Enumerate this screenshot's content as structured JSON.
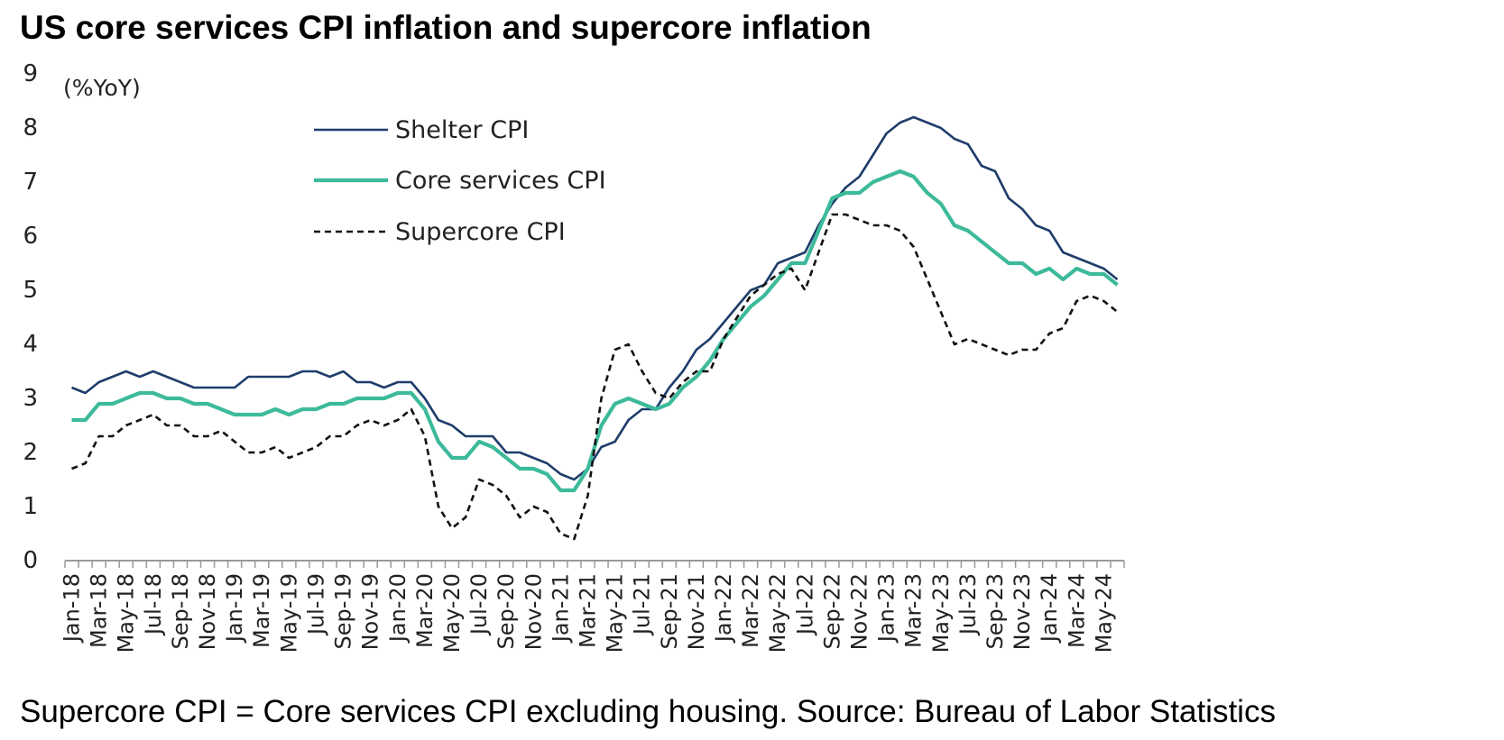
{
  "title": "US core services CPI inflation and supercore inflation",
  "footnote": "Supercore CPI = Core services CPI excluding housing. Source: Bureau of Labor Statistics",
  "chart_data": {
    "type": "line",
    "title": "US core services CPI inflation and supercore inflation",
    "ylabel": "(%YoY)",
    "xlabel": "",
    "ylim": [
      0,
      9
    ],
    "yticks": [
      0,
      1,
      2,
      3,
      4,
      5,
      6,
      7,
      8,
      9
    ],
    "grid": false,
    "legend_position": "top-left",
    "x": [
      "Jan-18",
      "Feb-18",
      "Mar-18",
      "Apr-18",
      "May-18",
      "Jun-18",
      "Jul-18",
      "Aug-18",
      "Sep-18",
      "Oct-18",
      "Nov-18",
      "Dec-18",
      "Jan-19",
      "Feb-19",
      "Mar-19",
      "Apr-19",
      "May-19",
      "Jun-19",
      "Jul-19",
      "Aug-19",
      "Sep-19",
      "Oct-19",
      "Nov-19",
      "Dec-19",
      "Jan-20",
      "Feb-20",
      "Mar-20",
      "Apr-20",
      "May-20",
      "Jun-20",
      "Jul-20",
      "Aug-20",
      "Sep-20",
      "Oct-20",
      "Nov-20",
      "Dec-20",
      "Jan-21",
      "Feb-21",
      "Mar-21",
      "Apr-21",
      "May-21",
      "Jun-21",
      "Jul-21",
      "Aug-21",
      "Sep-21",
      "Oct-21",
      "Nov-21",
      "Dec-21",
      "Jan-22",
      "Feb-22",
      "Mar-22",
      "Apr-22",
      "May-22",
      "Jun-22",
      "Jul-22",
      "Aug-22",
      "Sep-22",
      "Oct-22",
      "Nov-22",
      "Dec-22",
      "Jan-23",
      "Feb-23",
      "Mar-23",
      "Apr-23",
      "May-23",
      "Jun-23",
      "Jul-23",
      "Aug-23",
      "Sep-23",
      "Oct-23",
      "Nov-23",
      "Dec-23",
      "Jan-24",
      "Feb-24",
      "Mar-24",
      "Apr-24",
      "May-24",
      "Jun-24"
    ],
    "x_tick_labels": [
      "Jan-18",
      "Mar-18",
      "May-18",
      "Jul-18",
      "Sep-18",
      "Nov-18",
      "Jan-19",
      "Mar-19",
      "May-19",
      "Jul-19",
      "Sep-19",
      "Nov-19",
      "Jan-20",
      "Mar-20",
      "May-20",
      "Jul-20",
      "Sep-20",
      "Nov-20",
      "Jan-21",
      "Mar-21",
      "May-21",
      "Jul-21",
      "Sep-21",
      "Nov-21",
      "Jan-22",
      "Mar-22",
      "May-22",
      "Jul-22",
      "Sep-22",
      "Nov-22",
      "Jan-23",
      "Mar-23",
      "May-23",
      "Jul-23",
      "Sep-23",
      "Nov-23",
      "Jan-24",
      "Mar-24",
      "May-24"
    ],
    "series": [
      {
        "name": "Shelter CPI",
        "color": "#1f3d6b",
        "style": "solid",
        "values": [
          3.2,
          3.1,
          3.3,
          3.4,
          3.5,
          3.4,
          3.5,
          3.4,
          3.3,
          3.2,
          3.2,
          3.2,
          3.2,
          3.4,
          3.4,
          3.4,
          3.4,
          3.5,
          3.5,
          3.4,
          3.5,
          3.3,
          3.3,
          3.2,
          3.3,
          3.3,
          3.0,
          2.6,
          2.5,
          2.3,
          2.3,
          2.3,
          2.0,
          2.0,
          1.9,
          1.8,
          1.6,
          1.5,
          1.7,
          2.1,
          2.2,
          2.6,
          2.8,
          2.8,
          3.2,
          3.5,
          3.9,
          4.1,
          4.4,
          4.7,
          5.0,
          5.1,
          5.5,
          5.6,
          5.7,
          6.2,
          6.6,
          6.9,
          7.1,
          7.5,
          7.9,
          8.1,
          8.2,
          8.1,
          8.0,
          7.8,
          7.7,
          7.3,
          7.2,
          6.7,
          6.5,
          6.2,
          6.1,
          5.7,
          5.6,
          5.5,
          5.4,
          5.2
        ]
      },
      {
        "name": "Core services CPI",
        "color": "#3dba9b",
        "style": "solid",
        "values": [
          2.6,
          2.6,
          2.9,
          2.9,
          3.0,
          3.1,
          3.1,
          3.0,
          3.0,
          2.9,
          2.9,
          2.8,
          2.7,
          2.7,
          2.7,
          2.8,
          2.7,
          2.8,
          2.8,
          2.9,
          2.9,
          3.0,
          3.0,
          3.0,
          3.1,
          3.1,
          2.8,
          2.2,
          1.9,
          1.9,
          2.2,
          2.1,
          1.9,
          1.7,
          1.7,
          1.6,
          1.3,
          1.3,
          1.7,
          2.5,
          2.9,
          3.0,
          2.9,
          2.8,
          2.9,
          3.2,
          3.4,
          3.7,
          4.1,
          4.4,
          4.7,
          4.9,
          5.2,
          5.5,
          5.5,
          6.1,
          6.7,
          6.8,
          6.8,
          7.0,
          7.1,
          7.2,
          7.1,
          6.8,
          6.6,
          6.2,
          6.1,
          5.9,
          5.7,
          5.5,
          5.5,
          5.3,
          5.4,
          5.2,
          5.4,
          5.3,
          5.3,
          5.1
        ]
      },
      {
        "name": "Supercore CPI",
        "color": "#111111",
        "style": "dashed",
        "values": [
          1.7,
          1.8,
          2.3,
          2.3,
          2.5,
          2.6,
          2.7,
          2.5,
          2.5,
          2.3,
          2.3,
          2.4,
          2.2,
          2.0,
          2.0,
          2.1,
          1.9,
          2.0,
          2.1,
          2.3,
          2.3,
          2.5,
          2.6,
          2.5,
          2.6,
          2.8,
          2.3,
          1.0,
          0.6,
          0.8,
          1.5,
          1.4,
          1.2,
          0.8,
          1.0,
          0.9,
          0.5,
          0.4,
          1.2,
          3.0,
          3.9,
          4.0,
          3.5,
          3.1,
          3.0,
          3.3,
          3.5,
          3.5,
          4.1,
          4.5,
          4.9,
          5.1,
          5.3,
          5.4,
          5.0,
          5.7,
          6.4,
          6.4,
          6.3,
          6.2,
          6.2,
          6.1,
          5.8,
          5.2,
          4.6,
          4.0,
          4.1,
          4.0,
          3.9,
          3.8,
          3.9,
          3.9,
          4.2,
          4.3,
          4.8,
          4.9,
          4.8,
          4.6
        ]
      }
    ]
  }
}
